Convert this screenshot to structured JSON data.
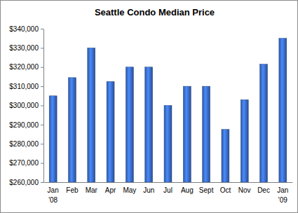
{
  "chart_data": {
    "type": "bar",
    "title": "Seattle Condo Median Price",
    "categories": [
      "Jan '08",
      "Feb",
      "Mar",
      "Apr",
      "May",
      "Jun",
      "Jul",
      "Aug",
      "Sept",
      "Oct",
      "Nov",
      "Dec",
      "Jan '09"
    ],
    "values": [
      305000,
      314500,
      330000,
      312500,
      320000,
      320000,
      300000,
      310000,
      310000,
      287500,
      303000,
      321500,
      335000
    ],
    "color": "#3a6cc6",
    "ylim": [
      260000,
      340000
    ],
    "yticks": [
      {
        "value": 260000,
        "label": "$260,000"
      },
      {
        "value": 270000,
        "label": "$270,000"
      },
      {
        "value": 280000,
        "label": "$280,000"
      },
      {
        "value": 290000,
        "label": "$290,000"
      },
      {
        "value": 300000,
        "label": "$300,000"
      },
      {
        "value": 310000,
        "label": "$310,000"
      },
      {
        "value": 320000,
        "label": "$320,000"
      },
      {
        "value": 330000,
        "label": "$330,000"
      },
      {
        "value": 340000,
        "label": "$340,000"
      }
    ],
    "grid": false
  }
}
